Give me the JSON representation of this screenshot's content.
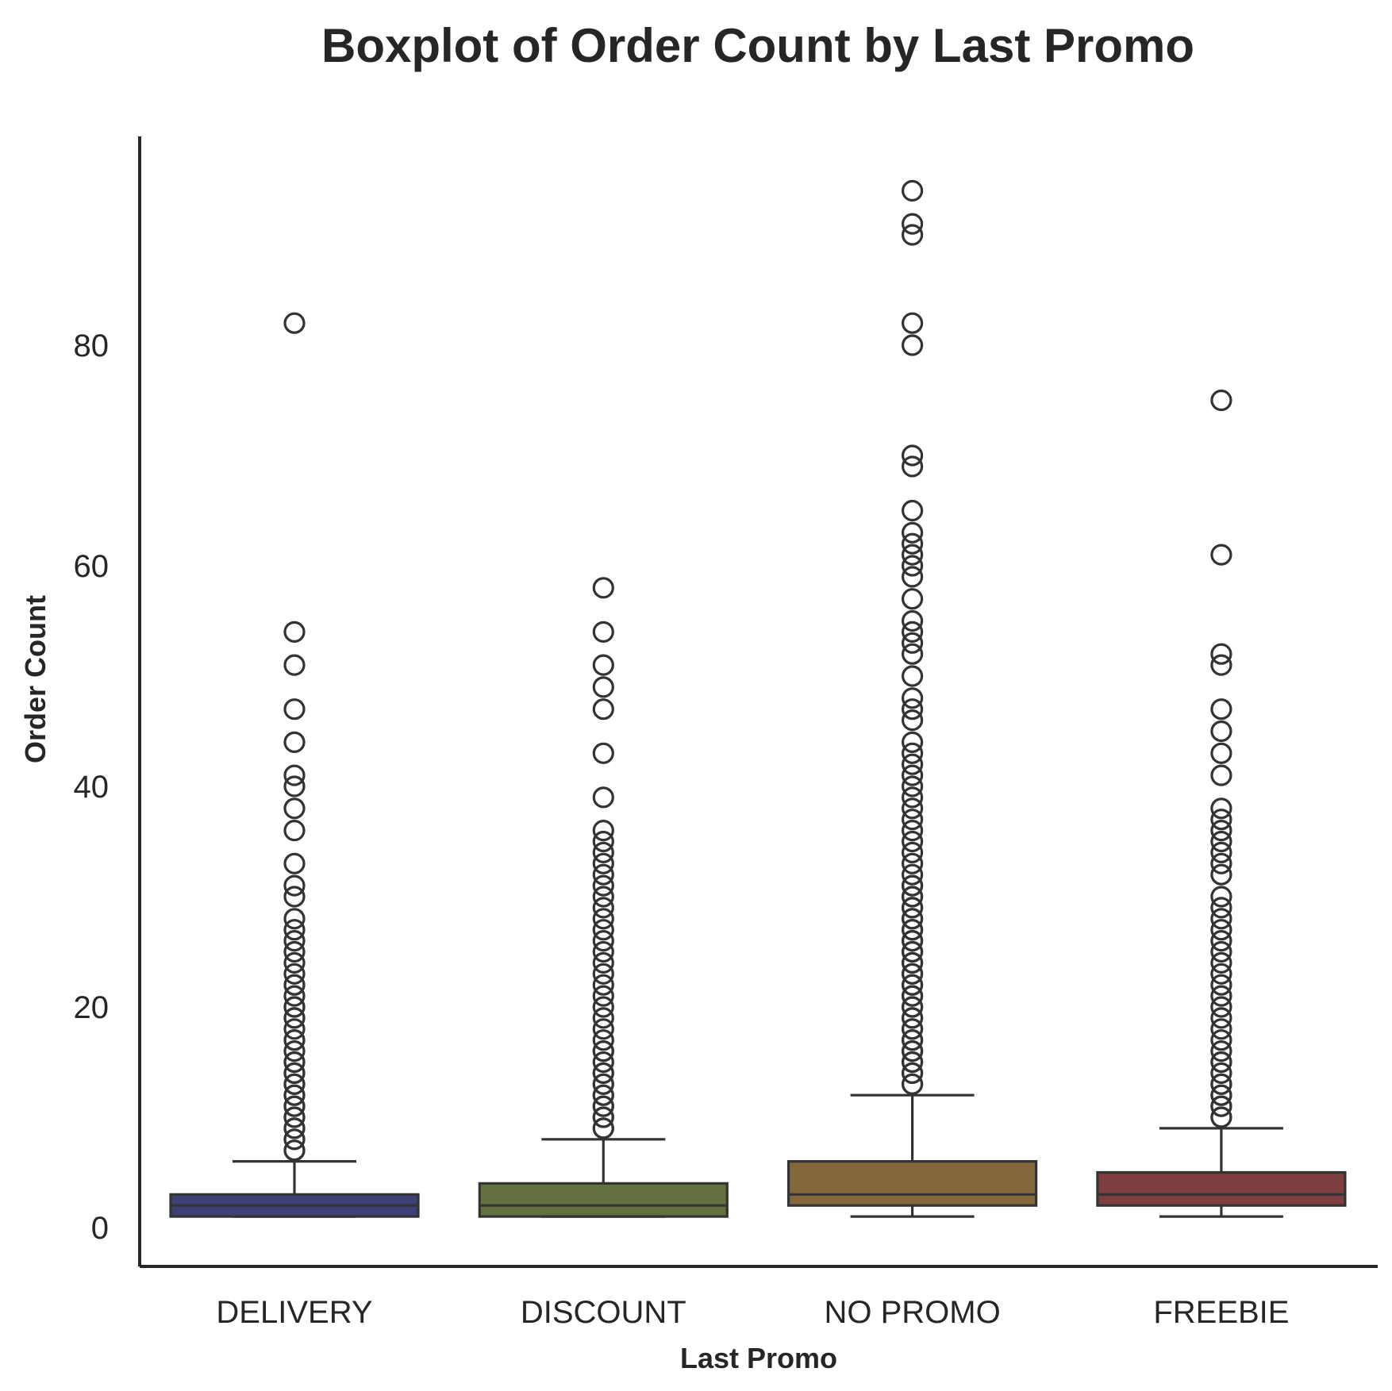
{
  "chart_data": {
    "type": "boxplot",
    "title": "Boxplot of Order Count by Last Promo",
    "xlabel": "Last Promo",
    "ylabel": "Order Count",
    "ylim": [
      -4.5,
      98
    ],
    "yticks": [
      0,
      20,
      40,
      60,
      80
    ],
    "grid": false,
    "legend": "none",
    "categories": [
      "DELIVERY",
      "DISCOUNT",
      "NO PROMO",
      "FREEBIE"
    ],
    "colors": [
      "#3d4176",
      "#637140",
      "#84683b",
      "#7f3e3f"
    ],
    "edge_color": "#333333",
    "boxes": [
      {
        "category": "DELIVERY",
        "whisker_low": 1,
        "q1": 1,
        "median": 2,
        "q3": 3,
        "whisker_high": 6,
        "outliers": [
          7,
          7,
          8,
          8,
          9,
          9,
          10,
          10,
          11,
          11,
          12,
          12,
          13,
          13,
          14,
          14,
          15,
          15,
          16,
          17,
          17,
          18,
          19,
          19,
          20,
          20,
          21,
          22,
          22,
          23,
          24,
          25,
          26,
          27,
          28,
          30,
          31,
          33,
          36,
          38,
          40,
          41,
          44,
          47,
          51,
          54,
          82
        ]
      },
      {
        "category": "DISCOUNT",
        "whisker_low": 1,
        "q1": 1,
        "median": 2,
        "q3": 4,
        "whisker_high": 8,
        "outliers": [
          9,
          9,
          10,
          10,
          11,
          11,
          12,
          12,
          13,
          13,
          14,
          14,
          15,
          16,
          16,
          17,
          18,
          19,
          20,
          21,
          22,
          23,
          24,
          25,
          26,
          27,
          28,
          29,
          30,
          31,
          32,
          33,
          34,
          35,
          36,
          39,
          43,
          47,
          49,
          51,
          54,
          58
        ]
      },
      {
        "category": "NO PROMO",
        "whisker_low": 1,
        "q1": 2,
        "median": 3,
        "q3": 6,
        "whisker_high": 12,
        "outliers": [
          13,
          13,
          14,
          14,
          15,
          15,
          16,
          16,
          17,
          17,
          18,
          18,
          19,
          19,
          20,
          20,
          21,
          21,
          22,
          22,
          23,
          23,
          24,
          24,
          25,
          25,
          26,
          26,
          27,
          27,
          28,
          28,
          29,
          29,
          30,
          30,
          31,
          31,
          32,
          33,
          34,
          35,
          36,
          37,
          38,
          39,
          40,
          41,
          42,
          43,
          44,
          46,
          47,
          48,
          50,
          52,
          53,
          54,
          55,
          57,
          59,
          60,
          61,
          62,
          63,
          65,
          69,
          70,
          80,
          82,
          90,
          91,
          94
        ]
      },
      {
        "category": "FREEBIE",
        "whisker_low": 1,
        "q1": 2,
        "median": 3,
        "q3": 5,
        "whisker_high": 9,
        "outliers": [
          10,
          10,
          11,
          11,
          12,
          12,
          13,
          13,
          14,
          15,
          15,
          16,
          17,
          18,
          19,
          20,
          21,
          22,
          23,
          24,
          25,
          26,
          27,
          28,
          29,
          30,
          32,
          33,
          34,
          35,
          36,
          37,
          38,
          41,
          43,
          45,
          47,
          51,
          52,
          61,
          75
        ]
      }
    ]
  }
}
